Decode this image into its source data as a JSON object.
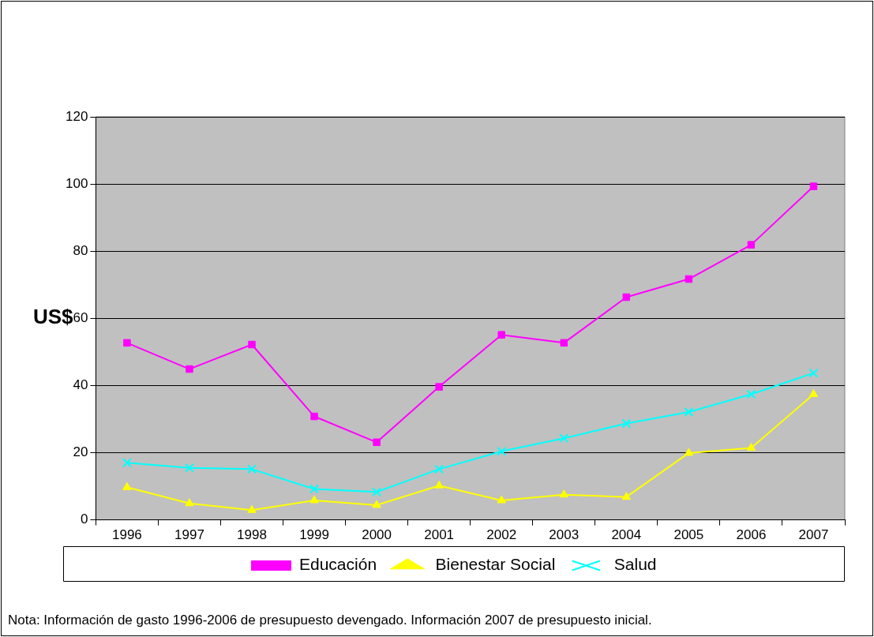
{
  "chart_data": {
    "type": "line",
    "ylabel": "US$",
    "categories": [
      "1996",
      "1997",
      "1998",
      "1999",
      "2000",
      "2001",
      "2002",
      "2003",
      "2004",
      "2005",
      "2006",
      "2007"
    ],
    "series": [
      {
        "name": "Educación",
        "color": "#ff00ff",
        "marker": "square",
        "values": [
          52.7,
          44.9,
          52.2,
          30.8,
          23.1,
          39.6,
          55.1,
          52.7,
          66.3,
          71.7,
          81.9,
          99.3
        ]
      },
      {
        "name": "Bienestar Social",
        "color": "#ffff00",
        "marker": "triangle",
        "values": [
          9.7,
          4.9,
          2.9,
          5.8,
          4.4,
          10.2,
          5.8,
          7.5,
          6.8,
          19.9,
          21.4,
          37.4
        ]
      },
      {
        "name": "Salud",
        "color": "#00ffff",
        "marker": "cross",
        "values": [
          17.0,
          15.5,
          15.1,
          9.2,
          8.3,
          15.1,
          20.4,
          24.3,
          28.7,
          32.1,
          37.4,
          43.7
        ]
      }
    ],
    "ylim": [
      0,
      120
    ],
    "yticks": [
      0,
      20,
      40,
      60,
      80,
      100,
      120
    ],
    "grid": "y",
    "legend": "bottom",
    "line_style": "solid",
    "annotations": [
      "Nota: Información de gasto 1996-2006 de presupuesto devengado. Información 2007 de presupuesto inicial."
    ]
  }
}
